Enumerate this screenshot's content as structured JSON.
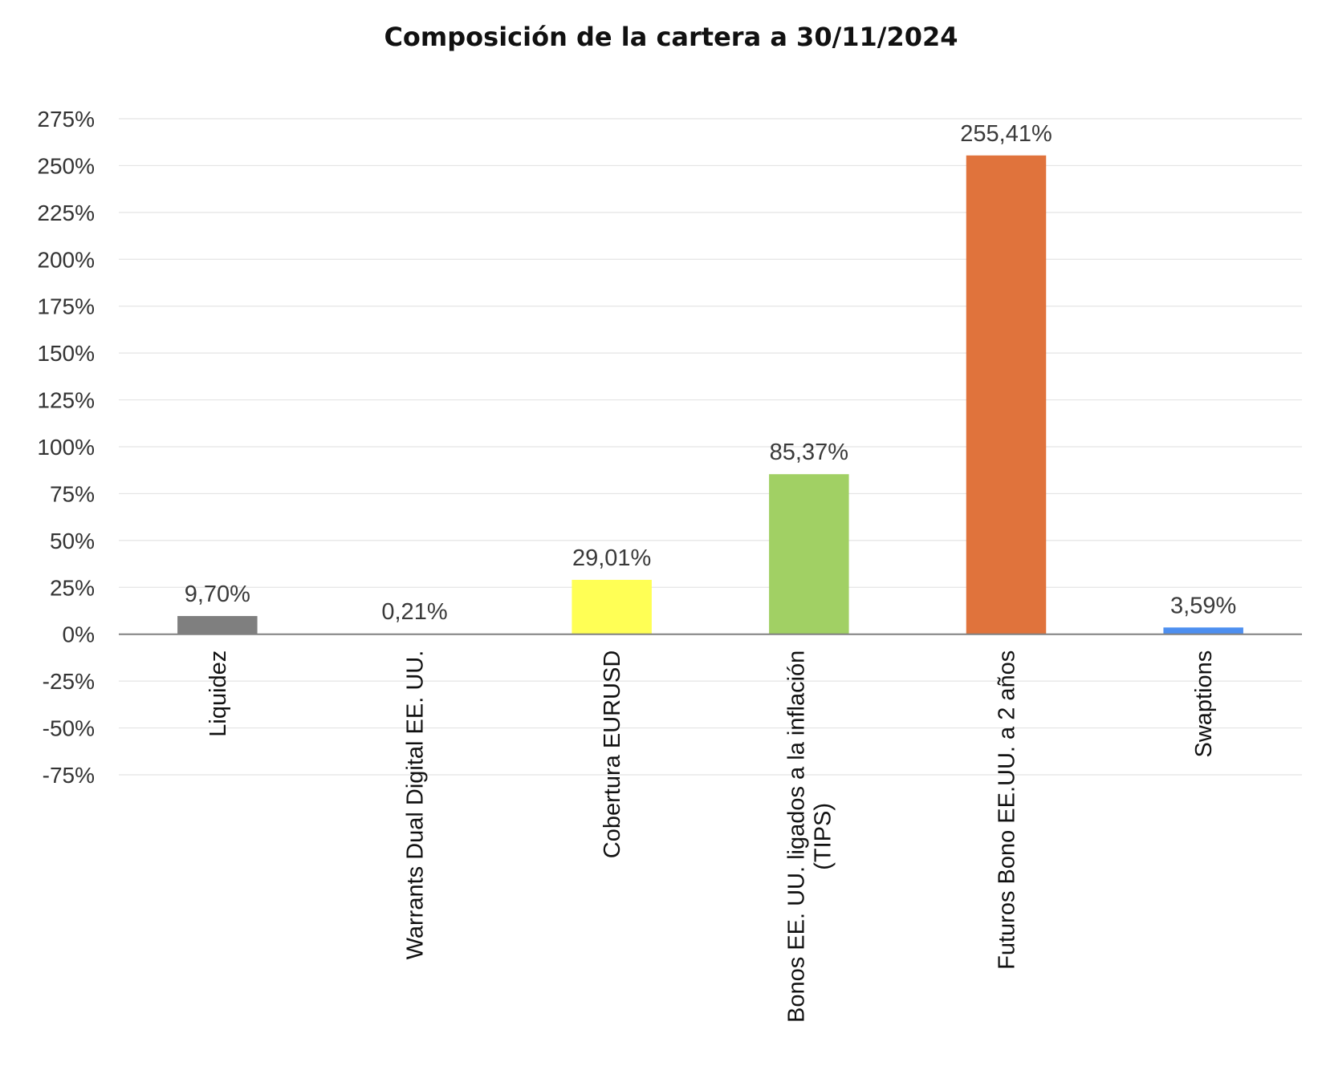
{
  "chart_data": {
    "type": "bar",
    "title": "Composición de la cartera a 30/11/2024",
    "xlabel": "",
    "ylabel": "",
    "ylim": [
      -75,
      275
    ],
    "ytick_step": 25,
    "ytick_labels": [
      "-75%",
      "-50%",
      "-25%",
      "0%",
      "25%",
      "50%",
      "75%",
      "100%",
      "125%",
      "150%",
      "175%",
      "200%",
      "225%",
      "250%",
      "275%"
    ],
    "grid": true,
    "legend": "none",
    "categories": [
      "Liquidez",
      "Warrants Dual Digital EE. UU.",
      "Cobertura EURUSD",
      "Bonos EE. UU. ligados a la inflación (TIPS)",
      "Futuros Bono EE.UU. a 2 años",
      "Swaptions"
    ],
    "category_label_lines": [
      [
        "Liquidez"
      ],
      [
        "Warrants Dual Digital EE. UU."
      ],
      [
        "Cobertura EURUSD"
      ],
      [
        "Bonos EE. UU. ligados a la inflación",
        "(TIPS)"
      ],
      [
        "Futuros Bono EE.UU. a 2 años"
      ],
      [
        "Swaptions"
      ]
    ],
    "values": [
      9.7,
      0.21,
      29.01,
      85.37,
      255.41,
      3.59
    ],
    "data_labels": [
      "9,70%",
      "0,21%",
      "29,01%",
      "85,37%",
      "255,41%",
      "3,59%"
    ],
    "colors": [
      "#7f7f7f",
      "#bfbfbf",
      "#ffff55",
      "#a1d064",
      "#e0733c",
      "#4d8ff0"
    ],
    "axis_color": "#808080",
    "grid_color": "#e4e4e4"
  }
}
